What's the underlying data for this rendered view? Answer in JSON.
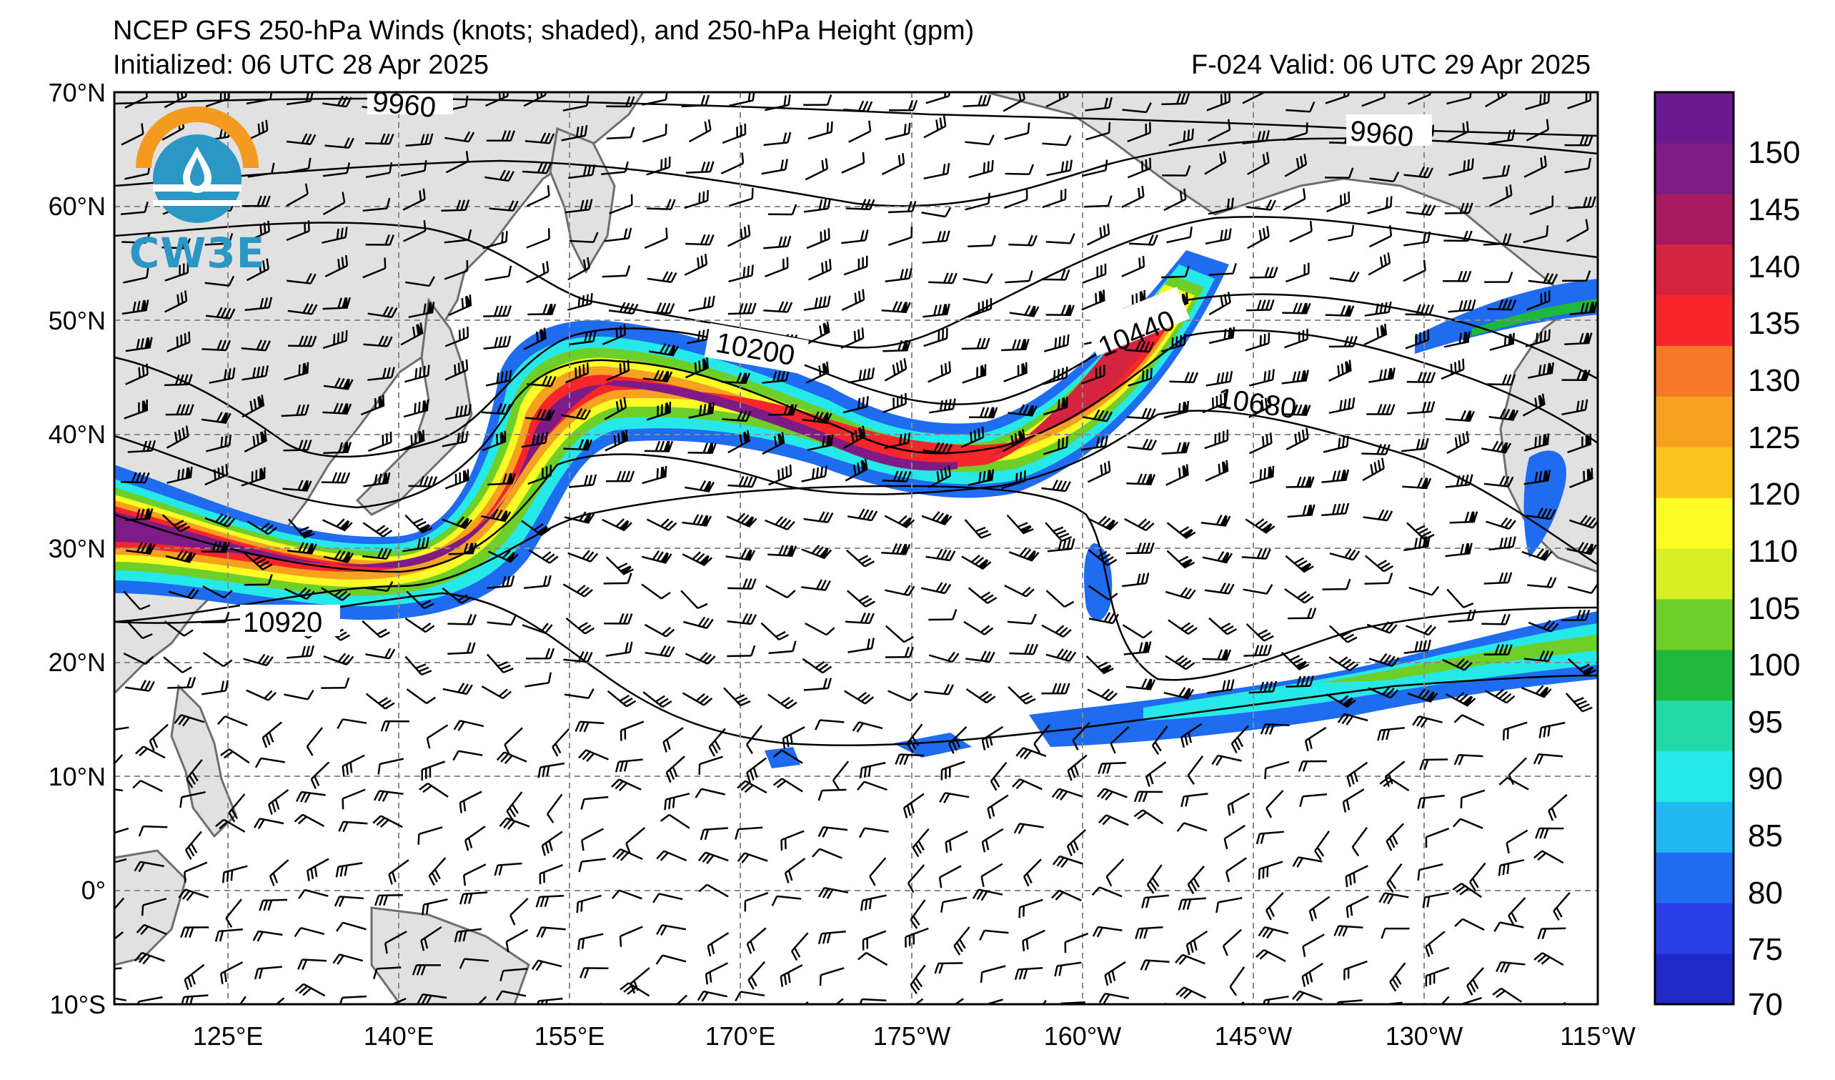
{
  "header": {
    "title": "NCEP GFS 250-hPa Winds (knots; shaded), and 250-hPa Height (gpm)",
    "initialized": "Initialized: 06 UTC 28 Apr 2025",
    "valid": "F-024  Valid: 06 UTC 29 Apr 2025"
  },
  "logo": {
    "text": "CW3E",
    "icon": "cw3e-water-drop-logo-icon"
  },
  "map": {
    "lat_labels": [
      "70°N",
      "60°N",
      "50°N",
      "40°N",
      "30°N",
      "20°N",
      "10°N",
      "0°",
      "10°S"
    ],
    "lon_labels": [
      "125°E",
      "140°E",
      "155°E",
      "170°E",
      "175°W",
      "160°W",
      "145°W",
      "130°W",
      "115°W"
    ],
    "contour_labels": [
      "9960",
      "9960",
      "10200",
      "10440",
      "10680",
      "10920"
    ],
    "colors": {
      "land": "#e1e1e1",
      "coast": "#6e6e6e",
      "grid": "#8a8a8a",
      "contour": "#000000"
    }
  },
  "colorbar": {
    "tick_labels": [
      "150",
      "145",
      "140",
      "135",
      "130",
      "125",
      "120",
      "110",
      "105",
      "100",
      "95",
      "90",
      "85",
      "80",
      "75",
      "70"
    ],
    "colors": [
      "#2028c8",
      "#2a3ee8",
      "#1f6cf0",
      "#20b8f2",
      "#26e8e8",
      "#22d9a8",
      "#20b83a",
      "#6ecf28",
      "#d8ef26",
      "#fdfb25",
      "#f9c41c",
      "#f7a120",
      "#f77828",
      "#f7262a",
      "#d42440",
      "#a61a60",
      "#7e1b86",
      "#6a1a8e"
    ]
  }
}
